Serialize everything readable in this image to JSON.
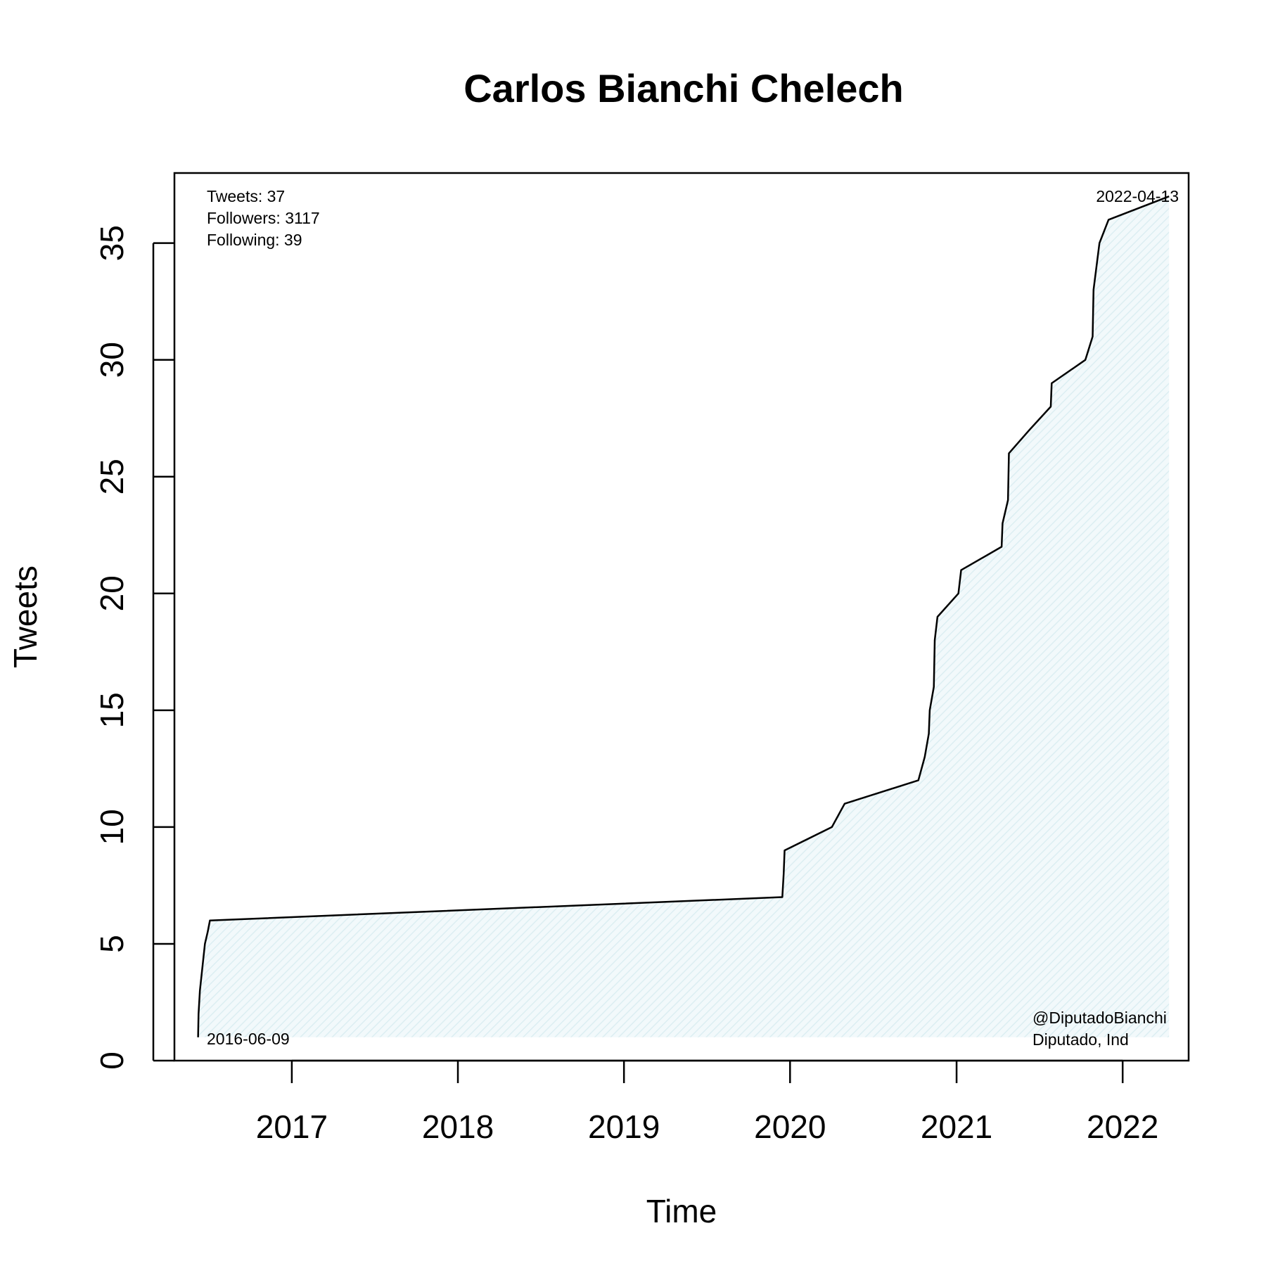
{
  "chart_data": {
    "type": "area",
    "title": "Carlos Bianchi Chelech",
    "xlabel": "Time",
    "ylabel": "Tweets",
    "xlim": [
      "2016-04-18",
      "2022-05-26"
    ],
    "ylim": [
      0,
      38
    ],
    "x_ticks": [
      "2017",
      "2018",
      "2019",
      "2020",
      "2021",
      "2022"
    ],
    "y_ticks": [
      0,
      5,
      10,
      15,
      20,
      25,
      30,
      35
    ],
    "grid": false,
    "fill_color": "#dceef2",
    "line_color": "#000000",
    "series": [
      {
        "x": [
          "2016-06-09",
          "2016-06-10",
          "2016-06-13",
          "2016-06-24",
          "2016-06-30",
          "2016-07-05",
          "2019-12-15",
          "2019-12-18",
          "2019-12-20",
          "2020-04-02",
          "2020-04-30",
          "2020-10-09",
          "2020-10-23",
          "2020-11-01",
          "2020-11-03",
          "2020-11-12",
          "2020-11-14",
          "2020-11-20",
          "2021-01-05",
          "2021-01-11",
          "2021-04-10",
          "2021-04-12",
          "2021-04-24",
          "2021-04-26",
          "2021-06-10",
          "2021-07-27",
          "2021-07-29",
          "2021-10-11",
          "2021-10-27",
          "2021-10-29",
          "2021-11-11",
          "2021-12-01",
          "2022-04-13"
        ],
        "values": [
          1,
          2,
          3,
          5,
          5.5,
          6,
          7,
          8,
          9,
          10,
          11,
          12,
          13,
          14,
          15,
          16,
          18,
          19,
          20,
          21,
          22,
          23,
          24,
          26,
          27,
          28,
          29,
          30,
          31,
          33,
          35,
          36,
          37
        ]
      }
    ],
    "annotations": {
      "stats": [
        "Tweets: 37",
        "Followers: 3117",
        "Following: 39"
      ],
      "start_date": "2016-06-09",
      "end_date": "2022-04-13",
      "handle": "@DiputadoBianchi",
      "role": "Diputado, Ind"
    }
  }
}
